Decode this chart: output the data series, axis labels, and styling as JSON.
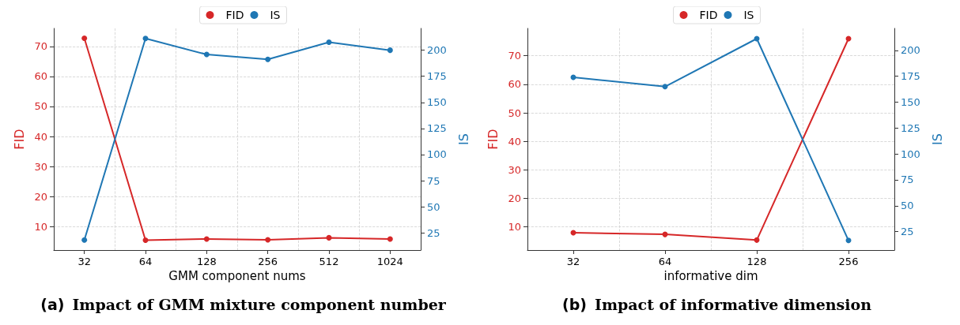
{
  "chart_data": [
    {
      "type": "line",
      "title": "(a) Impact of GMM mixture component number",
      "xlabel": "GMM component nums",
      "ylabel": "FID",
      "y2label": "IS",
      "categories": [
        "32",
        "64",
        "128",
        "256",
        "512",
        "1024"
      ],
      "series": [
        {
          "name": "FID",
          "color": "#d62728",
          "values": [
            72.7,
            5.5,
            5.9,
            5.6,
            6.3,
            5.9
          ]
        },
        {
          "name": "IS",
          "color": "#1f77b4",
          "axis": "y2",
          "values": [
            18.1,
            211.3,
            195.9,
            191.2,
            207.7,
            200.0
          ]
        }
      ],
      "ylim": [
        2.2,
        76.0
      ],
      "yticks": [
        10,
        20,
        30,
        40,
        50,
        60,
        70
      ],
      "y2lim": [
        8.5,
        220.9
      ],
      "y2ticks": [
        25,
        50,
        75,
        100,
        125,
        150,
        175,
        200
      ],
      "grid": true,
      "legend": "top",
      "marker": "circle",
      "line_style": "solid"
    },
    {
      "type": "line",
      "title": "(b) Impact of informative dimension",
      "xlabel": "informative dim",
      "ylabel": "FID",
      "y2label": "IS",
      "categories": [
        "32",
        "64",
        "128",
        "256"
      ],
      "series": [
        {
          "name": "FID",
          "color": "#d62728",
          "values": [
            8.0,
            7.4,
            5.4,
            76.0
          ]
        },
        {
          "name": "IS",
          "color": "#1f77b4",
          "axis": "y2",
          "values": [
            174,
            165,
            211.3,
            16.5
          ]
        }
      ],
      "ylim": [
        1.9,
        79.6
      ],
      "yticks": [
        10,
        20,
        30,
        40,
        50,
        60,
        70
      ],
      "y2lim": [
        7.2,
        221.2
      ],
      "y2ticks": [
        25,
        50,
        75,
        100,
        125,
        150,
        175,
        200
      ],
      "grid": true,
      "legend": "top",
      "marker": "circle",
      "line_style": "solid"
    }
  ]
}
